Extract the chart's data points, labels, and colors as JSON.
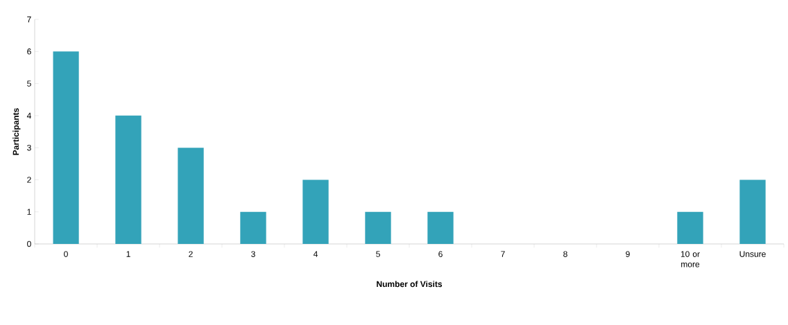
{
  "chart_data": {
    "type": "bar",
    "xlabel": "Number of Visits",
    "ylabel": "Participants",
    "categories": [
      "0",
      "1",
      "2",
      "3",
      "4",
      "5",
      "6",
      "7",
      "8",
      "9",
      "10 or more",
      "Unsure"
    ],
    "values": [
      6,
      4,
      3,
      1,
      2,
      1,
      1,
      0,
      0,
      0,
      1,
      2
    ],
    "color": "#33a3b9",
    "ylim": [
      0,
      7
    ],
    "yticks": [
      0,
      1,
      2,
      3,
      4,
      5,
      6,
      7
    ]
  }
}
